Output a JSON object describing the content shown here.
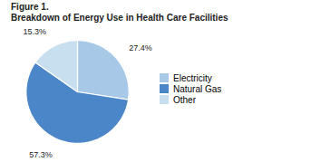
{
  "chart_data": {
    "type": "pie",
    "title": "Figure 1.",
    "subtitle": "Breakdown of Energy Use in Health Care Facilities",
    "categories": [
      "Electricity",
      "Natural Gas",
      "Other"
    ],
    "values": [
      27.4,
      57.3,
      15.3
    ],
    "value_labels": [
      "27.4%",
      "57.3%",
      "15.3%"
    ],
    "colors": [
      "#a8c8e8",
      "#4a86c8",
      "#c8dff0"
    ],
    "data_labels": true,
    "legend": "right"
  }
}
